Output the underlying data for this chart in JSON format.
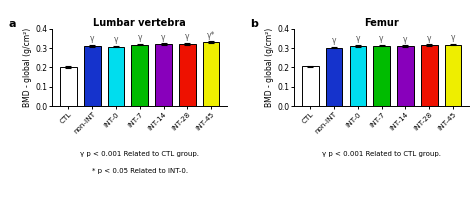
{
  "panel_a": {
    "title": "Lumbar vertebra",
    "label": "a",
    "categories": [
      "CTL",
      "non-INT",
      "INT-0",
      "INT-7",
      "INT-14",
      "INT-28",
      "INT-45"
    ],
    "values": [
      0.202,
      0.312,
      0.307,
      0.318,
      0.32,
      0.322,
      0.33
    ],
    "errors": [
      0.004,
      0.004,
      0.004,
      0.004,
      0.004,
      0.004,
      0.005
    ],
    "colors": [
      "white",
      "#1533cc",
      "#00ddee",
      "#00bb00",
      "#8800bb",
      "#ee1100",
      "#eeee00"
    ],
    "gamma_bars": [
      false,
      true,
      true,
      true,
      true,
      true,
      true
    ],
    "star_bars": [
      false,
      false,
      false,
      false,
      false,
      false,
      true
    ],
    "ylabel": "BMD - global (g/cm²)",
    "ylim": [
      0,
      0.4
    ],
    "yticks": [
      0.0,
      0.1,
      0.2,
      0.3,
      0.4
    ],
    "footnote1": "γ p < 0.001 Related to CTL group.",
    "footnote2": "* p < 0.05 Related to INT-0."
  },
  "panel_b": {
    "title": "Femur",
    "label": "b",
    "categories": [
      "CTL",
      "non-INT",
      "INT-0",
      "INT-7",
      "INT-14",
      "INT-28",
      "INT-45"
    ],
    "values": [
      0.205,
      0.302,
      0.312,
      0.313,
      0.311,
      0.315,
      0.318
    ],
    "errors": [
      0.004,
      0.004,
      0.004,
      0.004,
      0.004,
      0.004,
      0.004
    ],
    "colors": [
      "white",
      "#1533cc",
      "#00ddee",
      "#00bb00",
      "#8800bb",
      "#ee1100",
      "#eeee00"
    ],
    "gamma_bars": [
      false,
      true,
      true,
      true,
      true,
      true,
      true
    ],
    "star_bars": [
      false,
      false,
      false,
      false,
      false,
      false,
      false
    ],
    "ylabel": "BMD - global (g/cm²)",
    "ylim": [
      0,
      0.4
    ],
    "yticks": [
      0.0,
      0.1,
      0.2,
      0.3,
      0.4
    ],
    "footnote1": "γ p < 0.001 Related to CTL group."
  },
  "bar_width": 0.7,
  "figsize": [
    4.74,
    2.21
  ],
  "dpi": 100
}
